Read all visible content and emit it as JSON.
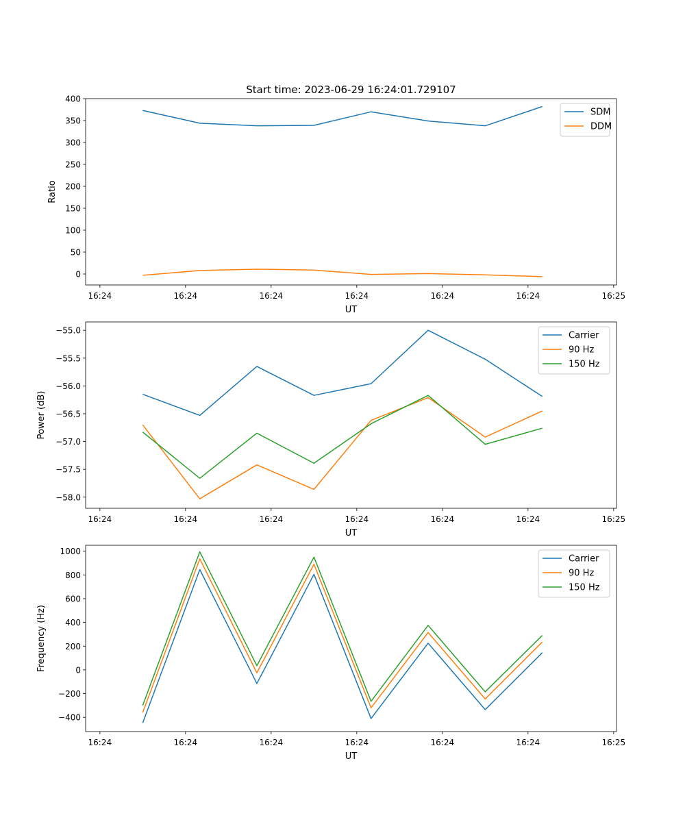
{
  "figure": {
    "title": "Start time: 2023-06-29 16:24:01.729107"
  },
  "chart_data": [
    {
      "type": "line",
      "title": "Start time: 2023-06-29 16:24:01.729107",
      "xlabel": "UT",
      "ylabel": "Ratio",
      "xlim": [
        0,
        9.3
      ],
      "ylim": [
        -25,
        400
      ],
      "x_ticks": [
        0.25,
        1.75,
        3.25,
        4.75,
        6.25,
        7.75,
        9.25
      ],
      "x_tick_labels": [
        "16:24",
        "16:24",
        "16:24",
        "16:24",
        "16:24",
        "16:24",
        "16:25"
      ],
      "y_ticks": [
        0,
        50,
        100,
        150,
        200,
        250,
        300,
        350,
        400
      ],
      "y_tick_labels": [
        "0",
        "50",
        "100",
        "150",
        "200",
        "250",
        "300",
        "350",
        "400"
      ],
      "x": [
        1,
        2,
        3,
        4,
        5,
        6,
        7,
        8
      ],
      "series": [
        {
          "name": "SDM",
          "color": "#1f77b4",
          "values": [
            373,
            344,
            338,
            339,
            370,
            349,
            338,
            382
          ]
        },
        {
          "name": "DDM",
          "color": "#ff7f0e",
          "values": [
            -3,
            8,
            11,
            9,
            -1,
            1,
            -2,
            -6
          ]
        }
      ],
      "legend": "top-right",
      "grid": false
    },
    {
      "type": "line",
      "title": "",
      "xlabel": "UT",
      "ylabel": "Power (dB)",
      "xlim": [
        0,
        9.3
      ],
      "ylim": [
        -58.2,
        -54.85
      ],
      "x_ticks": [
        0.25,
        1.75,
        3.25,
        4.75,
        6.25,
        7.75,
        9.25
      ],
      "x_tick_labels": [
        "16:24",
        "16:24",
        "16:24",
        "16:24",
        "16:24",
        "16:24",
        "16:25"
      ],
      "y_ticks": [
        -58.0,
        -57.5,
        -57.0,
        -56.5,
        -56.0,
        -55.5,
        -55.0
      ],
      "y_tick_labels": [
        "−58.0",
        "−57.5",
        "−57.0",
        "−56.5",
        "−56.0",
        "−55.5",
        "−55.0"
      ],
      "x": [
        1,
        2,
        3,
        4,
        5,
        6,
        7,
        8
      ],
      "series": [
        {
          "name": "Carrier",
          "color": "#1f77b4",
          "values": [
            -56.15,
            -56.53,
            -55.65,
            -56.17,
            -55.96,
            -55.0,
            -55.52,
            -56.19
          ]
        },
        {
          "name": "90 Hz",
          "color": "#ff7f0e",
          "values": [
            -56.7,
            -58.03,
            -57.42,
            -57.86,
            -56.62,
            -56.21,
            -56.92,
            -56.45
          ]
        },
        {
          "name": "150 Hz",
          "color": "#2ca02c",
          "values": [
            -56.83,
            -57.66,
            -56.85,
            -57.39,
            -56.68,
            -56.17,
            -57.05,
            -56.76
          ]
        }
      ],
      "legend": "top-right",
      "grid": false
    },
    {
      "type": "line",
      "title": "",
      "xlabel": "UT",
      "ylabel": "Frequency (Hz)",
      "xlim": [
        0,
        9.3
      ],
      "ylim": [
        -520,
        1050
      ],
      "x_ticks": [
        0.25,
        1.75,
        3.25,
        4.75,
        6.25,
        7.75,
        9.25
      ],
      "x_tick_labels": [
        "16:24",
        "16:24",
        "16:24",
        "16:24",
        "16:24",
        "16:24",
        "16:25"
      ],
      "y_ticks": [
        -400,
        -200,
        0,
        200,
        400,
        600,
        800,
        1000
      ],
      "y_tick_labels": [
        "−400",
        "−200",
        "0",
        "200",
        "400",
        "600",
        "800",
        "1000"
      ],
      "x": [
        1,
        2,
        3,
        4,
        5,
        6,
        7,
        8
      ],
      "series": [
        {
          "name": "Carrier",
          "color": "#1f77b4",
          "values": [
            -447,
            845,
            -115,
            805,
            -410,
            225,
            -335,
            145
          ]
        },
        {
          "name": "90 Hz",
          "color": "#ff7f0e",
          "values": [
            -360,
            935,
            -25,
            890,
            -320,
            315,
            -245,
            235
          ]
        },
        {
          "name": "150 Hz",
          "color": "#2ca02c",
          "values": [
            -300,
            995,
            35,
            950,
            -265,
            375,
            -185,
            290
          ]
        }
      ],
      "legend": "top-right",
      "grid": false
    }
  ]
}
